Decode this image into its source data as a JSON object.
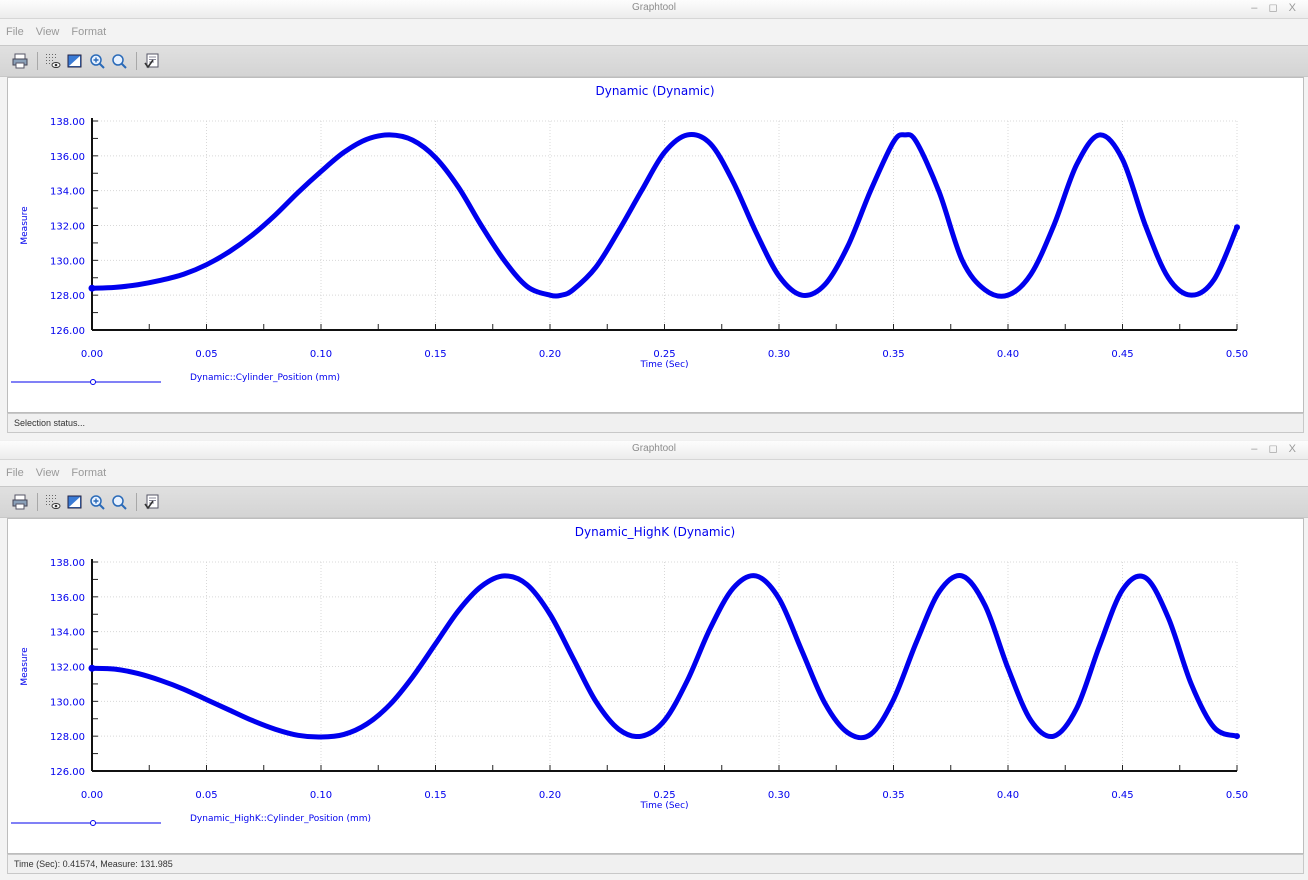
{
  "windows": [
    {
      "title": "Graphtool",
      "controls": "– ◻ X",
      "menu": [
        "File",
        "View",
        "Format"
      ],
      "toolbar_icons": [
        "print-icon",
        "grid-icon",
        "fit-icon",
        "zoom-in-icon",
        "zoom-icon",
        "properties-icon"
      ],
      "status": "Selection status...",
      "chart_data": {
        "type": "line",
        "title": "Dynamic (Dynamic)",
        "xlabel": "Time (Sec)",
        "ylabel": "Measure",
        "xlim": [
          0,
          0.5
        ],
        "ylim": [
          126,
          138
        ],
        "xticks": [
          "0.00",
          "0.05",
          "0.10",
          "0.15",
          "0.20",
          "0.25",
          "0.30",
          "0.35",
          "0.40",
          "0.45",
          "0.50"
        ],
        "yticks": [
          "126.00",
          "128.00",
          "130.00",
          "132.00",
          "134.00",
          "136.00",
          "138.00"
        ],
        "grid": true,
        "legend_position": "bottom-left",
        "series": [
          {
            "name": "Dynamic::Cylinder_Position (mm)",
            "color": "#0000ee",
            "x": [
              0,
              0.01,
              0.02,
              0.03,
              0.04,
              0.05,
              0.06,
              0.07,
              0.08,
              0.09,
              0.1,
              0.11,
              0.12,
              0.13,
              0.14,
              0.15,
              0.16,
              0.17,
              0.18,
              0.19,
              0.2,
              0.205,
              0.21,
              0.22,
              0.23,
              0.24,
              0.25,
              0.26,
              0.27,
              0.28,
              0.29,
              0.3,
              0.31,
              0.32,
              0.33,
              0.34,
              0.35,
              0.355,
              0.36,
              0.37,
              0.38,
              0.39,
              0.4,
              0.41,
              0.42,
              0.43,
              0.44,
              0.45,
              0.46,
              0.47,
              0.48,
              0.49,
              0.5
            ],
            "y": [
              128.4,
              128.45,
              128.6,
              128.85,
              129.2,
              129.75,
              130.5,
              131.45,
              132.6,
              133.9,
              135.1,
              136.2,
              136.95,
              137.2,
              136.9,
              135.9,
              134.2,
              132.0,
              130.0,
              128.5,
              128.0,
              128.0,
              128.3,
              129.6,
              131.7,
              134.0,
              136.2,
              137.2,
              136.7,
              134.5,
              131.6,
              129.1,
              128.0,
              128.6,
              130.8,
              134.0,
              136.8,
              137.2,
              136.8,
              133.9,
              130.0,
              128.3,
              128.0,
              129.2,
              132.0,
              135.5,
              137.2,
              135.8,
              132.0,
              129.0,
              128.0,
              128.9,
              131.9
            ]
          }
        ]
      }
    },
    {
      "title": "Graphtool",
      "controls": "– ◻ X",
      "menu": [
        "File",
        "View",
        "Format"
      ],
      "toolbar_icons": [
        "print-icon",
        "grid-icon",
        "fit-icon",
        "zoom-in-icon",
        "zoom-icon",
        "properties-icon"
      ],
      "status": "Time (Sec): 0.41574, Measure: 131.985",
      "chart_data": {
        "type": "line",
        "title": "Dynamic_HighK (Dynamic)",
        "xlabel": "Time (Sec)",
        "ylabel": "Measure",
        "xlim": [
          0,
          0.5
        ],
        "ylim": [
          126,
          138
        ],
        "xticks": [
          "0.00",
          "0.05",
          "0.10",
          "0.15",
          "0.20",
          "0.25",
          "0.30",
          "0.35",
          "0.40",
          "0.45",
          "0.50"
        ],
        "yticks": [
          "126.00",
          "128.00",
          "130.00",
          "132.00",
          "134.00",
          "136.00",
          "138.00"
        ],
        "grid": true,
        "legend_position": "bottom-left",
        "series": [
          {
            "name": "Dynamic_HighK::Cylinder_Position (mm)",
            "color": "#0000ee",
            "x": [
              0,
              0.01,
              0.02,
              0.03,
              0.04,
              0.05,
              0.06,
              0.07,
              0.08,
              0.09,
              0.1,
              0.11,
              0.12,
              0.13,
              0.14,
              0.15,
              0.16,
              0.17,
              0.18,
              0.19,
              0.2,
              0.21,
              0.22,
              0.23,
              0.24,
              0.25,
              0.26,
              0.27,
              0.28,
              0.29,
              0.3,
              0.31,
              0.32,
              0.33,
              0.34,
              0.35,
              0.36,
              0.37,
              0.38,
              0.39,
              0.4,
              0.41,
              0.42,
              0.43,
              0.44,
              0.45,
              0.46,
              0.47,
              0.48,
              0.49,
              0.5
            ],
            "y": [
              131.9,
              131.85,
              131.6,
              131.2,
              130.7,
              130.1,
              129.5,
              128.9,
              128.4,
              128.05,
              127.95,
              128.1,
              128.7,
              129.8,
              131.4,
              133.3,
              135.2,
              136.6,
              137.2,
              136.7,
              135.0,
              132.5,
              130.0,
              128.4,
              128.0,
              128.9,
              131.2,
              134.2,
              136.5,
              137.2,
              135.9,
              132.9,
              129.9,
              128.2,
              128.1,
              130.1,
              133.4,
              136.3,
              137.2,
              135.5,
              131.9,
              128.9,
              128.0,
              129.6,
              133.2,
              136.4,
              137.1,
              134.8,
              131.0,
              128.5,
              128.0
            ]
          }
        ]
      }
    }
  ]
}
